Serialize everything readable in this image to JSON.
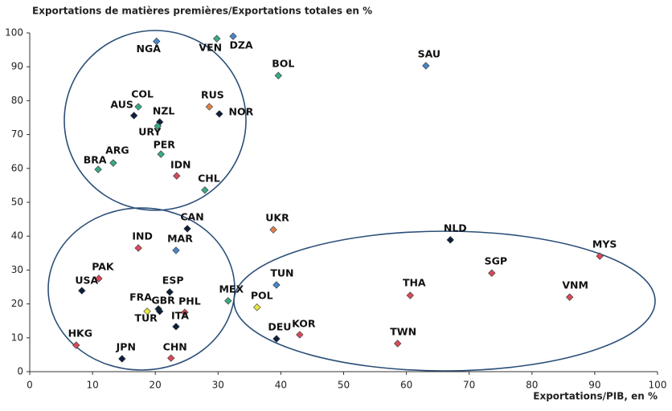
{
  "chart_data": {
    "type": "scatter",
    "title": "Exportations de matières premières/Exportations totales en %",
    "x_label": "Exportations/PIB, en %",
    "xlim": [
      0,
      100
    ],
    "xticks": [
      0,
      10,
      20,
      30,
      40,
      50,
      60,
      70,
      80,
      90,
      100
    ],
    "ylim": [
      0,
      100
    ],
    "yticks": [
      0,
      10,
      20,
      30,
      40,
      50,
      60,
      70,
      80,
      90,
      100
    ],
    "grid": false,
    "labels": [
      "NGA",
      "VEN",
      "DZA",
      "BOL",
      "SAU",
      "COL",
      "AUS",
      "NZL",
      "URY",
      "RUS",
      "NOR",
      "PER",
      "ARG",
      "BRA",
      "IDN",
      "CHL",
      "CAN",
      "UKR",
      "IND",
      "MAR",
      "NLD",
      "MYS",
      "SGP",
      "PAK",
      "USA",
      "ESP",
      "TUN",
      "THA",
      "VNM",
      "MEX",
      "POL",
      "FRA",
      "GBR",
      "TUR",
      "PHL",
      "ITA",
      "KOR",
      "DEU",
      "TWN",
      "HKG",
      "JPN",
      "CHN"
    ],
    "x": [
      20.2,
      29.8,
      32.4,
      39.6,
      63.1,
      17.3,
      16.6,
      20.7,
      20.4,
      28.6,
      30.2,
      20.9,
      13.3,
      10.9,
      23.4,
      27.9,
      25.1,
      38.8,
      17.3,
      23.3,
      67.0,
      90.8,
      73.6,
      11.0,
      8.3,
      22.3,
      39.3,
      60.6,
      86.0,
      31.6,
      36.2,
      18.7,
      20.5,
      20.7,
      24.7,
      23.3,
      43.0,
      39.3,
      58.6,
      7.4,
      14.7,
      22.5
    ],
    "values": [
      97.5,
      98.3,
      99.0,
      87.4,
      90.3,
      78.2,
      75.6,
      73.7,
      72.5,
      78.2,
      76.1,
      64.2,
      61.6,
      59.7,
      57.8,
      53.6,
      42.2,
      41.9,
      36.5,
      35.8,
      38.9,
      34.1,
      29.1,
      27.5,
      23.9,
      23.5,
      25.6,
      22.5,
      22.0,
      20.9,
      19.0,
      17.8,
      18.5,
      17.8,
      17.5,
      13.3,
      10.9,
      9.7,
      8.3,
      7.8,
      3.8,
      4.0
    ],
    "colors": [
      "#4a86c8",
      "#3aaa80",
      "#4a86c8",
      "#3aaa80",
      "#4a86c8",
      "#3aaa80",
      "#0d1f3c",
      "#0d1f3c",
      "#3aaa80",
      "#e0804a",
      "#0d1f3c",
      "#3aaa80",
      "#3aaa80",
      "#3aaa80",
      "#d84a5a",
      "#3aaa80",
      "#0d1f3c",
      "#e0804a",
      "#d84a5a",
      "#4a86c8",
      "#0d1f3c",
      "#d84a5a",
      "#d84a5a",
      "#d84a5a",
      "#0d1f3c",
      "#0d1f3c",
      "#4a86c8",
      "#d84a5a",
      "#d84a5a",
      "#3aaa80",
      "#e8e840",
      "#e8e840",
      "#0d1f3c",
      "#0d1f3c",
      "#d84a5a",
      "#0d1f3c",
      "#d84a5a",
      "#0d1f3c",
      "#d84a5a",
      "#d84a5a",
      "#0d1f3c",
      "#d84a5a"
    ]
  }
}
